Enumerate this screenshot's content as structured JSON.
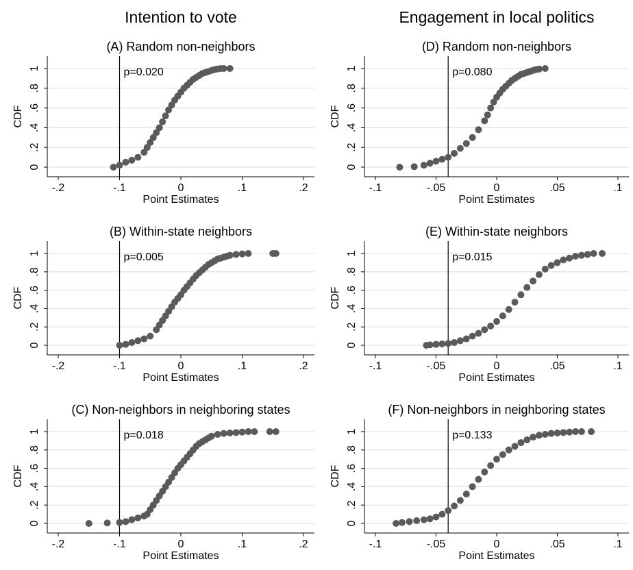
{
  "column_titles": [
    "Intention to vote",
    "Engagement in local politics"
  ],
  "chart_data": [
    {
      "type": "scatter",
      "title": "(A) Random non-neighbors",
      "xlabel": "Point Estimates",
      "ylabel": "CDF",
      "xlim": [
        -0.2,
        0.2
      ],
      "ylim": [
        0,
        1
      ],
      "xticks": [
        -0.2,
        -0.1,
        0,
        0.1,
        0.2
      ],
      "xtick_labels": [
        "-.2",
        "-.1",
        "0",
        ".1",
        ".2"
      ],
      "yticks": [
        0,
        0.2,
        0.4,
        0.6,
        0.8,
        1
      ],
      "ytick_labels": [
        "0",
        ".2",
        ".4",
        ".6",
        ".8",
        "1"
      ],
      "reference_x": -0.1,
      "annotation": "p=0.020",
      "grid": true,
      "color": "#5a5a5a",
      "series": [
        {
          "x": [
            -0.11,
            -0.1,
            -0.09,
            -0.08,
            -0.07,
            -0.06,
            -0.055,
            -0.05,
            -0.045,
            -0.04,
            -0.035,
            -0.03,
            -0.025,
            -0.02,
            -0.015,
            -0.01,
            -0.005,
            0,
            0.005,
            0.01,
            0.015,
            0.02,
            0.025,
            0.03,
            0.035,
            0.04,
            0.045,
            0.05,
            0.055,
            0.06,
            0.065,
            0.07,
            0.08
          ],
          "y": [
            0,
            0.02,
            0.05,
            0.07,
            0.1,
            0.15,
            0.2,
            0.25,
            0.3,
            0.35,
            0.4,
            0.46,
            0.52,
            0.58,
            0.63,
            0.68,
            0.72,
            0.76,
            0.8,
            0.83,
            0.86,
            0.89,
            0.91,
            0.93,
            0.95,
            0.96,
            0.97,
            0.98,
            0.99,
            0.995,
            1,
            1,
            1
          ]
        }
      ]
    },
    {
      "type": "scatter",
      "title": "(B) Within-state neighbors",
      "xlabel": "Point Estimates",
      "ylabel": "CDF",
      "xlim": [
        -0.2,
        0.2
      ],
      "ylim": [
        0,
        1
      ],
      "xticks": [
        -0.2,
        -0.1,
        0,
        0.1,
        0.2
      ],
      "xtick_labels": [
        "-.2",
        "-.1",
        "0",
        ".1",
        ".2"
      ],
      "yticks": [
        0,
        0.2,
        0.4,
        0.6,
        0.8,
        1
      ],
      "ytick_labels": [
        "0",
        ".2",
        ".4",
        ".6",
        ".8",
        "1"
      ],
      "reference_x": -0.1,
      "annotation": "p=0.005",
      "grid": true,
      "color": "#5a5a5a",
      "series": [
        {
          "x": [
            -0.1,
            -0.09,
            -0.08,
            -0.07,
            -0.06,
            -0.05,
            -0.04,
            -0.035,
            -0.03,
            -0.025,
            -0.02,
            -0.015,
            -0.01,
            -0.005,
            0,
            0.005,
            0.01,
            0.015,
            0.02,
            0.025,
            0.03,
            0.035,
            0.04,
            0.045,
            0.05,
            0.055,
            0.06,
            0.065,
            0.07,
            0.075,
            0.08,
            0.09,
            0.1,
            0.11,
            0.15,
            0.155
          ],
          "y": [
            0,
            0.01,
            0.03,
            0.05,
            0.07,
            0.1,
            0.17,
            0.22,
            0.27,
            0.32,
            0.37,
            0.42,
            0.47,
            0.51,
            0.55,
            0.6,
            0.64,
            0.68,
            0.72,
            0.76,
            0.79,
            0.82,
            0.85,
            0.88,
            0.9,
            0.92,
            0.94,
            0.95,
            0.96,
            0.97,
            0.98,
            0.99,
            0.995,
            1,
            1,
            1
          ]
        }
      ]
    },
    {
      "type": "scatter",
      "title": "(C) Non-neighbors in neighboring states",
      "xlabel": "Point Estimates",
      "ylabel": "CDF",
      "xlim": [
        -0.2,
        0.2
      ],
      "ylim": [
        0,
        1
      ],
      "xticks": [
        -0.2,
        -0.1,
        0,
        0.1,
        0.2
      ],
      "xtick_labels": [
        "-.2",
        "-.1",
        "0",
        ".1",
        ".2"
      ],
      "yticks": [
        0,
        0.2,
        0.4,
        0.6,
        0.8,
        1
      ],
      "ytick_labels": [
        "0",
        ".2",
        ".4",
        ".6",
        ".8",
        "1"
      ],
      "reference_x": -0.1,
      "annotation": "p=0.018",
      "grid": true,
      "color": "#5a5a5a",
      "series": [
        {
          "x": [
            -0.15,
            -0.12,
            -0.1,
            -0.09,
            -0.08,
            -0.07,
            -0.06,
            -0.055,
            -0.05,
            -0.045,
            -0.04,
            -0.035,
            -0.03,
            -0.025,
            -0.02,
            -0.015,
            -0.01,
            -0.005,
            0,
            0.005,
            0.01,
            0.015,
            0.02,
            0.025,
            0.03,
            0.035,
            0.04,
            0.045,
            0.05,
            0.06,
            0.07,
            0.08,
            0.09,
            0.1,
            0.11,
            0.12,
            0.145,
            0.155
          ],
          "y": [
            0,
            0.005,
            0.01,
            0.02,
            0.04,
            0.06,
            0.08,
            0.1,
            0.15,
            0.2,
            0.25,
            0.3,
            0.35,
            0.4,
            0.45,
            0.5,
            0.55,
            0.6,
            0.64,
            0.68,
            0.72,
            0.76,
            0.8,
            0.84,
            0.87,
            0.89,
            0.91,
            0.93,
            0.95,
            0.97,
            0.98,
            0.985,
            0.99,
            0.995,
            1,
            1,
            1,
            1
          ]
        }
      ]
    },
    {
      "type": "scatter",
      "title": "(D) Random non-neighbors",
      "xlabel": "Point Estimates",
      "ylabel": "CDF",
      "xlim": [
        -0.1,
        0.1
      ],
      "ylim": [
        0,
        1
      ],
      "xticks": [
        -0.1,
        -0.05,
        0,
        0.05,
        0.1
      ],
      "xtick_labels": [
        "-.1",
        "-.05",
        "0",
        ".05",
        ".1"
      ],
      "yticks": [
        0,
        0.2,
        0.4,
        0.6,
        0.8,
        1
      ],
      "ytick_labels": [
        "0",
        ".2",
        ".4",
        ".6",
        ".8",
        "1"
      ],
      "reference_x": -0.04,
      "annotation": "p=0.080",
      "grid": true,
      "color": "#5a5a5a",
      "series": [
        {
          "x": [
            -0.08,
            -0.068,
            -0.06,
            -0.055,
            -0.05,
            -0.045,
            -0.04,
            -0.035,
            -0.03,
            -0.025,
            -0.02,
            -0.015,
            -0.01,
            -0.0075,
            -0.005,
            -0.0025,
            0,
            0.0025,
            0.005,
            0.0075,
            0.01,
            0.0125,
            0.015,
            0.0175,
            0.02,
            0.0225,
            0.025,
            0.0275,
            0.03,
            0.0325,
            0.035,
            0.04
          ],
          "y": [
            0,
            0.005,
            0.02,
            0.04,
            0.06,
            0.08,
            0.1,
            0.14,
            0.19,
            0.24,
            0.3,
            0.38,
            0.47,
            0.53,
            0.6,
            0.66,
            0.71,
            0.75,
            0.79,
            0.82,
            0.85,
            0.88,
            0.9,
            0.92,
            0.94,
            0.95,
            0.96,
            0.97,
            0.98,
            0.99,
            0.995,
            1
          ]
        }
      ]
    },
    {
      "type": "scatter",
      "title": "(E) Within-state neighbors",
      "xlabel": "Point Estimates",
      "ylabel": "CDF",
      "xlim": [
        -0.1,
        0.1
      ],
      "ylim": [
        0,
        1
      ],
      "xticks": [
        -0.1,
        -0.05,
        0,
        0.05,
        0.1
      ],
      "xtick_labels": [
        "-.1",
        "-.05",
        "0",
        ".05",
        ".1"
      ],
      "yticks": [
        0,
        0.2,
        0.4,
        0.6,
        0.8,
        1
      ],
      "ytick_labels": [
        "0",
        ".2",
        ".4",
        ".6",
        ".8",
        "1"
      ],
      "reference_x": -0.04,
      "annotation": "p=0.015",
      "grid": true,
      "color": "#5a5a5a",
      "series": [
        {
          "x": [
            -0.058,
            -0.055,
            -0.05,
            -0.045,
            -0.04,
            -0.035,
            -0.03,
            -0.025,
            -0.02,
            -0.015,
            -0.01,
            -0.005,
            0,
            0.005,
            0.01,
            0.015,
            0.02,
            0.025,
            0.03,
            0.035,
            0.04,
            0.045,
            0.05,
            0.055,
            0.06,
            0.065,
            0.07,
            0.075,
            0.08,
            0.087
          ],
          "y": [
            0,
            0.005,
            0.01,
            0.015,
            0.02,
            0.03,
            0.05,
            0.07,
            0.1,
            0.13,
            0.17,
            0.21,
            0.26,
            0.32,
            0.39,
            0.47,
            0.55,
            0.63,
            0.7,
            0.77,
            0.83,
            0.87,
            0.9,
            0.93,
            0.95,
            0.97,
            0.98,
            0.99,
            1,
            1
          ]
        }
      ]
    },
    {
      "type": "scatter",
      "title": "(F) Non-neighbors in neighboring states",
      "xlabel": "Point Estimates",
      "ylabel": "CDF",
      "xlim": [
        -0.1,
        0.1
      ],
      "ylim": [
        0,
        1
      ],
      "xticks": [
        -0.1,
        -0.05,
        0,
        0.05,
        0.1
      ],
      "xtick_labels": [
        "-.1",
        "-.05",
        "0",
        ".05",
        ".1"
      ],
      "yticks": [
        0,
        0.2,
        0.4,
        0.6,
        0.8,
        1
      ],
      "ytick_labels": [
        "0",
        ".2",
        ".4",
        ".6",
        ".8",
        "1"
      ],
      "reference_x": -0.04,
      "annotation": "p=0.133",
      "grid": true,
      "color": "#5a5a5a",
      "series": [
        {
          "x": [
            -0.083,
            -0.078,
            -0.072,
            -0.066,
            -0.06,
            -0.055,
            -0.05,
            -0.045,
            -0.04,
            -0.035,
            -0.03,
            -0.025,
            -0.02,
            -0.015,
            -0.01,
            -0.005,
            0,
            0.005,
            0.01,
            0.015,
            0.02,
            0.025,
            0.03,
            0.035,
            0.04,
            0.045,
            0.05,
            0.055,
            0.06,
            0.065,
            0.07,
            0.078
          ],
          "y": [
            0,
            0.01,
            0.02,
            0.03,
            0.04,
            0.05,
            0.07,
            0.1,
            0.14,
            0.19,
            0.25,
            0.32,
            0.4,
            0.48,
            0.56,
            0.63,
            0.7,
            0.75,
            0.8,
            0.84,
            0.88,
            0.91,
            0.94,
            0.96,
            0.97,
            0.98,
            0.985,
            0.99,
            0.995,
            1,
            1,
            1
          ]
        }
      ]
    }
  ]
}
